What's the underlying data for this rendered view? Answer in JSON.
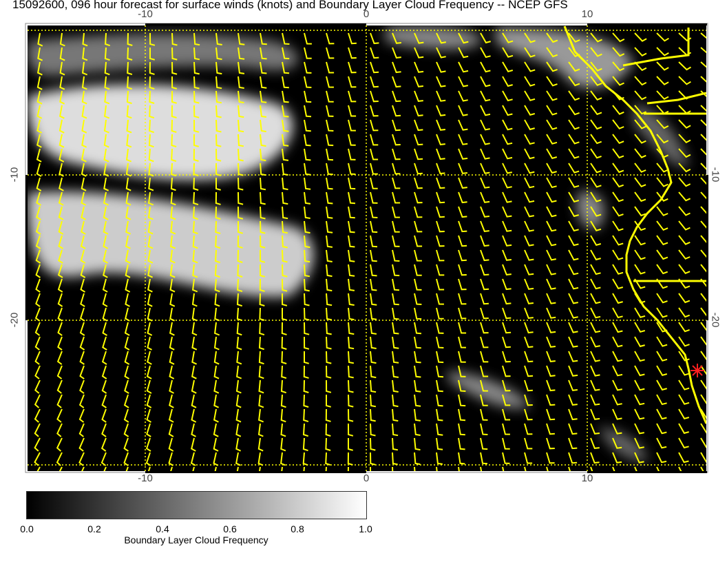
{
  "title": "15092600, 096 hour forecast for surface winds (knots) and Boundary Layer Cloud Frequency -- NCEP GFS",
  "map": {
    "lon_ticks": [
      "-10",
      "0",
      "10"
    ],
    "lat_ticks": [
      "-10",
      "-20"
    ],
    "lon_range": [
      -15.4,
      15.4
    ],
    "lat_range": [
      0.4,
      -30.4
    ],
    "background_color": "#000000",
    "wind_barb_color": "#ffff00",
    "coastline_color": "#ffff00",
    "marker_color": "#ff2020",
    "marker_icon": "asterisk"
  },
  "colorbar": {
    "labels": [
      "0.0",
      "0.2",
      "0.4",
      "0.6",
      "0.8",
      "1.0"
    ],
    "title": "Boundary Layer Cloud Frequency",
    "range": [
      0.0,
      1.0
    ],
    "colors": [
      "#000000",
      "#ffffff"
    ]
  }
}
